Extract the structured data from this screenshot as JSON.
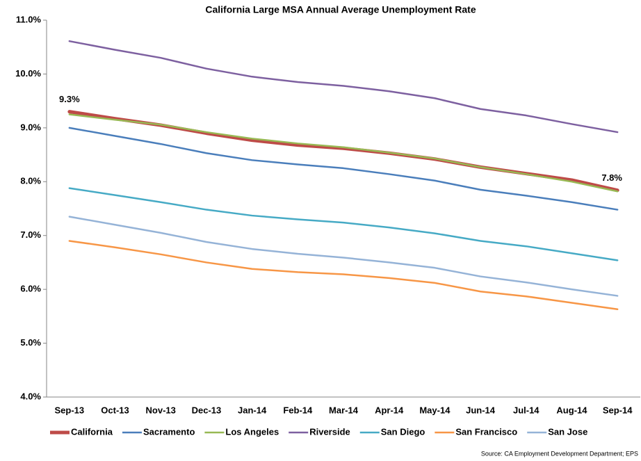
{
  "chart_data": {
    "type": "line",
    "title": "California Large MSA Annual Average Unemployment Rate",
    "categories": [
      "Sep-13",
      "Oct-13",
      "Nov-13",
      "Dec-13",
      "Jan-14",
      "Feb-14",
      "Mar-14",
      "Apr-14",
      "May-14",
      "Jun-14",
      "Jul-14",
      "Aug-14",
      "Sep-14"
    ],
    "series": [
      {
        "name": "California",
        "color": "#be4b48",
        "values": [
          9.3,
          9.17,
          9.05,
          8.9,
          8.77,
          8.68,
          8.62,
          8.53,
          8.42,
          8.27,
          8.15,
          8.03,
          7.84
        ],
        "value_labels": [
          "9.3%",
          null,
          null,
          null,
          null,
          null,
          null,
          null,
          null,
          null,
          null,
          null,
          "7.8%"
        ]
      },
      {
        "name": "Sacramento",
        "color": "#4a7ebb",
        "values": [
          9.0,
          8.85,
          8.7,
          8.53,
          8.4,
          8.32,
          8.25,
          8.14,
          8.02,
          7.85,
          7.74,
          7.62,
          7.48
        ]
      },
      {
        "name": "Los Angeles",
        "color": "#98b954",
        "values": [
          9.25,
          9.15,
          9.06,
          8.92,
          8.8,
          8.71,
          8.64,
          8.54,
          8.43,
          8.27,
          8.14,
          8.0,
          7.82
        ]
      },
      {
        "name": "Riverside",
        "color": "#7d60a0",
        "values": [
          10.61,
          10.45,
          10.3,
          10.1,
          9.95,
          9.85,
          9.78,
          9.68,
          9.55,
          9.35,
          9.23,
          9.07,
          8.92
        ]
      },
      {
        "name": "San Diego",
        "color": "#46aac5",
        "values": [
          7.88,
          7.75,
          7.62,
          7.48,
          7.37,
          7.3,
          7.24,
          7.15,
          7.04,
          6.9,
          6.8,
          6.67,
          6.54
        ]
      },
      {
        "name": "San Francisco",
        "color": "#f79646",
        "values": [
          6.9,
          6.78,
          6.65,
          6.5,
          6.38,
          6.32,
          6.28,
          6.21,
          6.12,
          5.96,
          5.87,
          5.75,
          5.63
        ]
      },
      {
        "name": "San Jose",
        "color": "#95b3d7",
        "values": [
          7.35,
          7.2,
          7.05,
          6.88,
          6.75,
          6.66,
          6.59,
          6.5,
          6.4,
          6.24,
          6.13,
          6.0,
          5.88
        ]
      }
    ],
    "ylim": [
      4,
      11
    ],
    "yticks": [
      {
        "value": 4,
        "label": "4.0%"
      },
      {
        "value": 5,
        "label": "5.0%"
      },
      {
        "value": 6,
        "label": "6.0%"
      },
      {
        "value": 7,
        "label": "7.0%"
      },
      {
        "value": 8,
        "label": "8.0%"
      },
      {
        "value": 9,
        "label": "9.0%"
      },
      {
        "value": 10,
        "label": "10.0%"
      },
      {
        "value": 11,
        "label": "11.0%"
      }
    ],
    "grid": false,
    "legend": "bottom",
    "source": "Source:  CA Employment Development Department; EPS"
  }
}
